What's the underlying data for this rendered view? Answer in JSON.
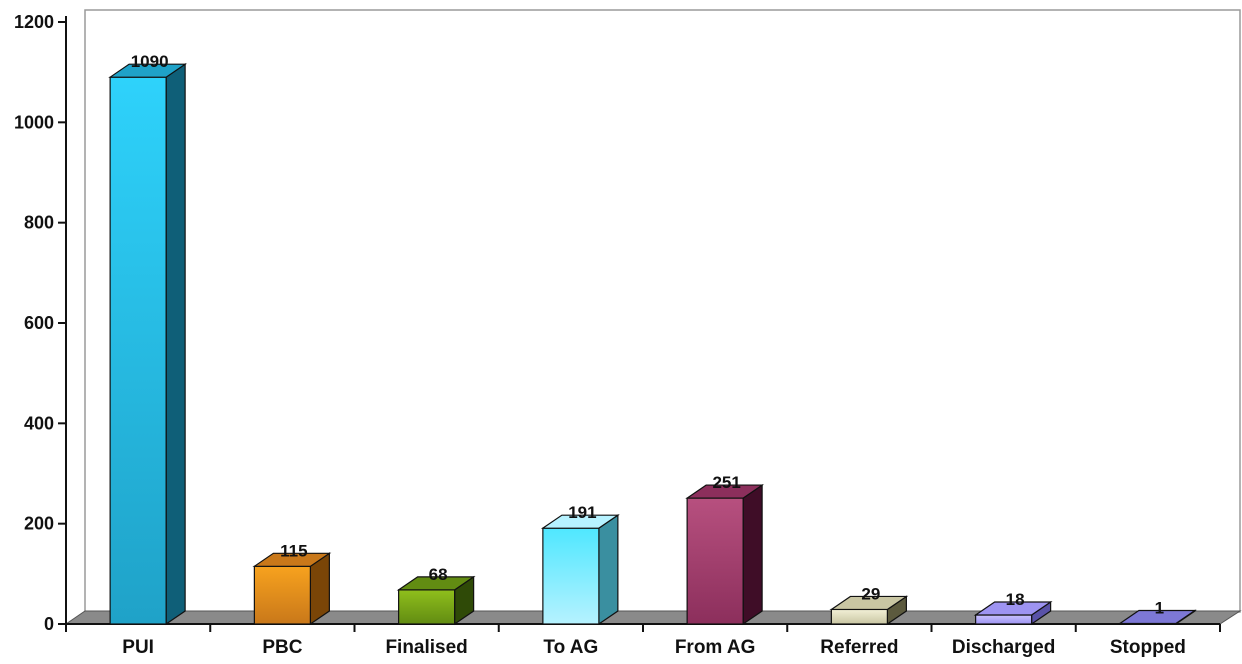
{
  "chart_data": {
    "type": "bar",
    "style": "3d",
    "title": "",
    "xlabel": "",
    "ylabel": "",
    "ylim": [
      0,
      1200
    ],
    "yticks": [
      0,
      200,
      400,
      600,
      800,
      1000,
      1200
    ],
    "grid": false,
    "categories": [
      "PUI",
      "PBC",
      "Finalised",
      "To AG",
      "From AG",
      "Referred",
      "Discharged",
      "Stopped"
    ],
    "values": [
      1090,
      115,
      68,
      191,
      251,
      29,
      18,
      1
    ],
    "data_labels": [
      "1090",
      "115",
      "68",
      "191",
      "251",
      "29",
      "18",
      "1"
    ],
    "colors": [
      {
        "light": "#2ed2fb",
        "mid": "#1fa2c8",
        "dark": "#0f5f78"
      },
      {
        "light": "#f7a21e",
        "mid": "#c9781a",
        "dark": "#7a4507"
      },
      {
        "light": "#8fbf1c",
        "mid": "#628c12",
        "dark": "#2f4a07"
      },
      {
        "light": "#4fe7ff",
        "mid": "#b6f2ff",
        "dark": "#3a8fa0"
      },
      {
        "light": "#b7507f",
        "mid": "#8c2f5c",
        "dark": "#3f0d27"
      },
      {
        "light": "#f2f0d6",
        "mid": "#c9c6a3",
        "dark": "#5c5a3e"
      },
      {
        "light": "#c9c2ff",
        "mid": "#9e94f2",
        "dark": "#5a52a8"
      },
      {
        "light": "#9a96e6",
        "mid": "#7d78d6",
        "dark": "#45419a"
      }
    ]
  }
}
